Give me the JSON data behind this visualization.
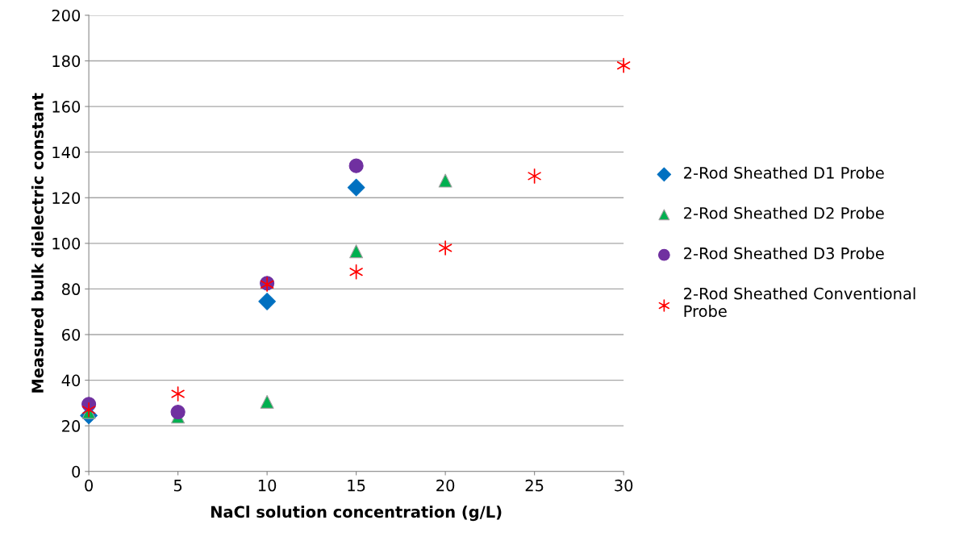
{
  "chart_data": {
    "type": "scatter",
    "xlabel": "NaCl solution concentration (g/L)",
    "ylabel": "Measured bulk dielectric constant",
    "xlim": [
      0,
      30
    ],
    "xticks": [
      0,
      5,
      10,
      15,
      20,
      25,
      30
    ],
    "ylim": [
      0,
      200
    ],
    "yticks": [
      0,
      20,
      40,
      60,
      80,
      100,
      120,
      140,
      160,
      180,
      200
    ],
    "grid": "y",
    "legend": "right",
    "series": [
      {
        "name": "2-Rod Sheathed D1 Probe",
        "color": "#0070c0",
        "marker": "diamond",
        "x": [
          0,
          5,
          10,
          15
        ],
        "values": [
          24.5,
          null,
          74.5,
          124.5
        ]
      },
      {
        "name": "2-Rod Sheathed D2 Probe",
        "color": "#00b050",
        "marker": "triangle",
        "x": [
          0,
          5,
          10,
          15,
          20
        ],
        "values": [
          26,
          24,
          30.5,
          96.5,
          127.5
        ]
      },
      {
        "name": "2-Rod Sheathed D3 Probe",
        "color": "#7030a0",
        "marker": "circle",
        "x": [
          0,
          5,
          10,
          15
        ],
        "values": [
          29.5,
          26,
          82.5,
          134
        ]
      },
      {
        "name": "2-Rod Sheathed Conventional\nProbe",
        "color": "#ff0000",
        "marker": "cross",
        "x": [
          0,
          5,
          10,
          15,
          20,
          25,
          30
        ],
        "values": [
          27,
          34,
          82,
          87.5,
          98,
          129.5,
          178
        ]
      }
    ]
  }
}
